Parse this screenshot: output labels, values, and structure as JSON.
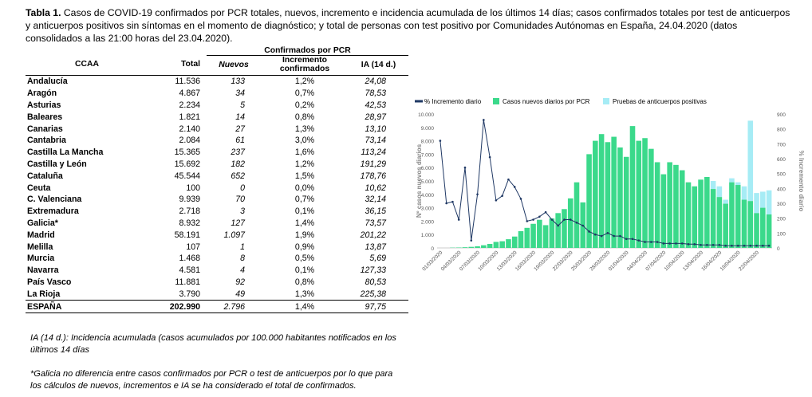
{
  "caption": {
    "label": "Tabla 1.",
    "text": "Casos de COVID-19 confirmados por PCR totales, nuevos, incremento e incidencia acumulada de los últimos 14 días; casos confirmados totales por test de anticuerpos y anticuerpos positivos sin síntomas en el momento de diagnóstico; y total de personas con test positivo por Comunidades Autónomas en España, 24.04.2020 (datos consolidados a las 21:00 horas del 23.04.2020)."
  },
  "table": {
    "group_header": "Confirmados por PCR",
    "headers": [
      "CCAA",
      "Total",
      "Nuevos",
      "Incremento confirmados",
      "IA (14 d.)"
    ],
    "rows": [
      [
        "Andalucía",
        "11.536",
        "133",
        "1,2%",
        "24,08"
      ],
      [
        "Aragón",
        "4.867",
        "34",
        "0,7%",
        "78,53"
      ],
      [
        "Asturias",
        "2.234",
        "5",
        "0,2%",
        "42,53"
      ],
      [
        "Baleares",
        "1.821",
        "14",
        "0,8%",
        "28,97"
      ],
      [
        "Canarias",
        "2.140",
        "27",
        "1,3%",
        "13,10"
      ],
      [
        "Cantabria",
        "2.084",
        "61",
        "3,0%",
        "73,14"
      ],
      [
        "Castilla La Mancha",
        "15.365",
        "237",
        "1,6%",
        "113,24"
      ],
      [
        "Castilla y León",
        "15.692",
        "182",
        "1,2%",
        "191,29"
      ],
      [
        "Cataluña",
        "45.544",
        "652",
        "1,5%",
        "178,76"
      ],
      [
        "Ceuta",
        "100",
        "0",
        "0,0%",
        "10,62"
      ],
      [
        "C. Valenciana",
        "9.939",
        "70",
        "0,7%",
        "32,14"
      ],
      [
        "Extremadura",
        "2.718",
        "3",
        "0,1%",
        "36,15"
      ],
      [
        "Galicia*",
        "8.932",
        "127",
        "1,4%",
        "73,57"
      ],
      [
        "Madrid",
        "58.191",
        "1.097",
        "1,9%",
        "201,22"
      ],
      [
        "Melilla",
        "107",
        "1",
        "0,9%",
        "13,87"
      ],
      [
        "Murcia",
        "1.468",
        "8",
        "0,5%",
        "5,69"
      ],
      [
        "Navarra",
        "4.581",
        "4",
        "0,1%",
        "127,33"
      ],
      [
        "País Vasco",
        "11.881",
        "92",
        "0,8%",
        "80,53"
      ],
      [
        "La Rioja",
        "3.790",
        "49",
        "1,3%",
        "225,38"
      ]
    ],
    "total_row": [
      "ESPAÑA",
      "202.990",
      "2.796",
      "1,4%",
      "97,75"
    ]
  },
  "notes": {
    "ia": "IA (14 d.): Incidencia acumulada (casos acumulados por 100.000 habitantes notificados en los últimos 14 días",
    "galicia": "*Galicia no diferencia entre casos confirmados por PCR o test de anticuerpos por lo que para los cálculos de nuevos, incrementos e IA se ha considerado el total de confirmados."
  },
  "colors": {
    "pcr": "#3bd98b",
    "anticuerpos": "#a6ecf5",
    "incremento": "#1f3864"
  },
  "chart_data": {
    "type": "bar",
    "ylabel": "Nº casos nuevos diarios",
    "y2label": "% Incremento diario",
    "ylim": [
      0,
      10000
    ],
    "y2lim": [
      0,
      900
    ],
    "yticks": [
      "0",
      "1.000",
      "2.000",
      "3.000",
      "4.000",
      "5.000",
      "6.000",
      "7.000",
      "8.000",
      "9.000",
      "10.000"
    ],
    "y2ticks": [
      "0",
      "100",
      "200",
      "300",
      "400",
      "500",
      "600",
      "700",
      "800",
      "900"
    ],
    "legend_position": "top",
    "x_tick_labels": [
      "01/03/2020",
      "04/03/2020",
      "07/03/2020",
      "10/03/2020",
      "13/03/2020",
      "16/03/2020",
      "19/03/2020",
      "22/03/2020",
      "25/03/2020",
      "28/03/2020",
      "01/04/2020",
      "04/04/2020",
      "07/04/2020",
      "10/04/2020",
      "13/04/2020",
      "16/04/2020",
      "19/04/2020",
      "22/04/2020"
    ],
    "series": [
      {
        "name": "% Incremento diario",
        "type": "line",
        "axis": "right",
        "values": [
          720,
          300,
          310,
          190,
          540,
          50,
          360,
          860,
          610,
          320,
          350,
          460,
          410,
          330,
          180,
          190,
          210,
          240,
          190,
          150,
          190,
          190,
          170,
          150,
          110,
          90,
          80,
          100,
          80,
          80,
          60,
          60,
          50,
          40,
          40,
          40,
          30,
          30,
          30,
          30,
          25,
          25,
          20,
          20,
          20,
          20,
          15,
          15,
          15,
          15,
          15,
          15,
          15,
          15
        ]
      },
      {
        "name": "Casos nuevos diarios por PCR",
        "type": "bar",
        "axis": "left",
        "values": [
          0,
          0,
          20,
          30,
          50,
          80,
          120,
          200,
          300,
          450,
          500,
          650,
          850,
          1250,
          1500,
          1800,
          2100,
          1700,
          2200,
          2600,
          2900,
          3700,
          4900,
          3400,
          7000,
          8000,
          8500,
          7900,
          8300,
          7500,
          6800,
          9100,
          8000,
          8200,
          7400,
          6400,
          5500,
          6400,
          6200,
          5800,
          4900,
          4600,
          5100,
          5300,
          4400,
          3800,
          3300,
          4900,
          4700,
          3600,
          3500,
          2600,
          3000,
          2500
        ]
      },
      {
        "name": "Pruebas de anticuerpos positivas",
        "type": "bar",
        "axis": "left",
        "values": [
          0,
          0,
          0,
          0,
          0,
          0,
          0,
          0,
          0,
          0,
          0,
          0,
          0,
          0,
          0,
          0,
          0,
          0,
          0,
          0,
          0,
          0,
          0,
          0,
          0,
          0,
          0,
          0,
          0,
          0,
          0,
          0,
          0,
          0,
          0,
          0,
          0,
          0,
          0,
          0,
          0,
          0,
          0,
          0,
          600,
          800,
          300,
          300,
          200,
          1000,
          6000,
          1500,
          1200,
          1800
        ]
      }
    ]
  }
}
